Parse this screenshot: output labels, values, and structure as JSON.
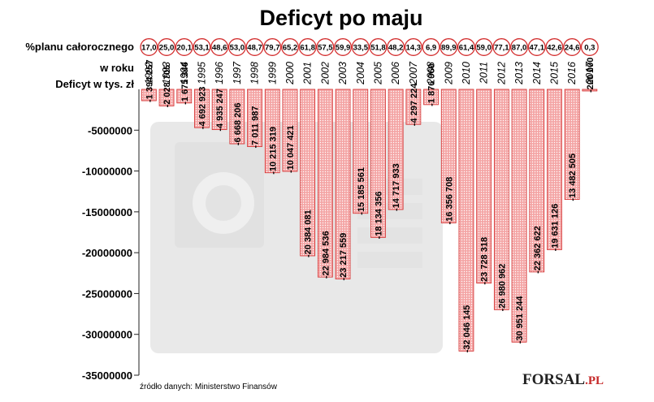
{
  "chart_data": {
    "type": "bar",
    "title": "Deficyt po maju",
    "row_labels": {
      "percent_plan": "%planu całorocznego",
      "in_year": "w roku",
      "deficit": "Deficyt w tys. zł"
    },
    "categories": [
      "1992",
      "1993",
      "1994",
      "1995",
      "1996",
      "1997",
      "1998",
      "1999",
      "2000",
      "2001",
      "2002",
      "2003",
      "2004",
      "2005",
      "2006",
      "2007",
      "2008",
      "2009",
      "2010",
      "2011",
      "2012",
      "2013",
      "2014",
      "2015",
      "2016",
      "2017"
    ],
    "percent_labels": [
      "17,0",
      "25,0",
      "20,1",
      "53,1",
      "48,6",
      "53,0",
      "48,7",
      "79,7",
      "65,2",
      "61,8",
      "57,5",
      "59,9",
      "33,5",
      "51,8",
      "48,2",
      "14,3",
      "6,9",
      "89,9",
      "61,4",
      "59,0",
      "77,1",
      "87,0",
      "47,1",
      "42,6",
      "24,6",
      "0,3"
    ],
    "values": [
      -1394257,
      -2028705,
      -1675346,
      -4692923,
      -4935247,
      -6668206,
      -7011987,
      -10215319,
      -10047421,
      -20384081,
      -22984536,
      -23217559,
      -15185561,
      -18134356,
      -14717933,
      -4297224,
      -1876960,
      -16356708,
      -32046145,
      -23728318,
      -26980962,
      -30951244,
      -22362622,
      -19631126,
      -13482505,
      -200000
    ],
    "value_labels": [
      "-1 394 257",
      "-2 028 705",
      "-1 675 346",
      "-4 692 923",
      "-4 935 247",
      "-6 668 206",
      "-7 011 987",
      "-10 215 319",
      "-10 047 421",
      "-20 384 081",
      "-22 984 536",
      "-23 217 559",
      "-15 185 561",
      "-18 134 356",
      "-14 717 933",
      "-4 297 224",
      "-1 876 960",
      "-16 356 708",
      "-32 046 145",
      "-23 728 318",
      "-26 980 962",
      "-30 951 244",
      "-22 362 622",
      "-19 631 126",
      "-13 482 505",
      "-200 000"
    ],
    "ylim": [
      -35000000,
      0
    ],
    "yticks": [
      -5000000,
      -10000000,
      -15000000,
      -20000000,
      -25000000,
      -30000000,
      -35000000
    ],
    "ytick_labels": [
      "-5000000",
      "-10000000",
      "-15000000",
      "-20000000",
      "-25000000",
      "-30000000",
      "-35000000"
    ],
    "grid": false,
    "source": "źródło danych: Ministerstwo Finansów"
  },
  "logo": {
    "name": "FORSAL",
    "suffix": ".PL"
  },
  "colors": {
    "bar_fill": "#f4a6a6",
    "bar_border": "#d32f2f",
    "circle": "#d32f2f",
    "dot": "#ffffff"
  }
}
